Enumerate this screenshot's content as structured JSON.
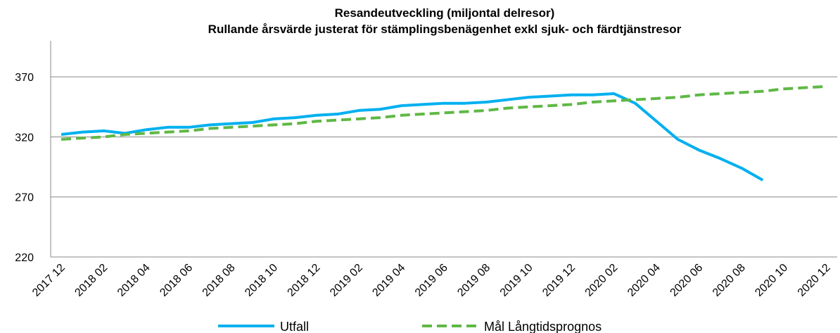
{
  "chart_data": {
    "type": "line",
    "title": "Resandeutveckling (miljontal delresor)",
    "subtitle": "Rullande årsvärde justerat för stämplingsbenägenhet exkl sjuk- och färdtjänstresor",
    "categories": [
      "2017 12",
      null,
      "2018 02",
      null,
      "2018 04",
      null,
      "2018 06",
      null,
      "2018 08",
      null,
      "2018 10",
      null,
      "2018 12",
      null,
      "2019 02",
      null,
      "2019 04",
      null,
      "2019 06",
      null,
      "2019 08",
      null,
      "2019 10",
      null,
      "2019 12",
      null,
      "2020 02",
      null,
      "2020 04",
      null,
      "2020 06",
      null,
      "2020 08",
      null,
      "2020 10",
      null,
      "2020 12"
    ],
    "series": [
      {
        "name": "Utfall",
        "color": "#00b0f0",
        "dash": false,
        "values": [
          322,
          324,
          325,
          323,
          326,
          328,
          328,
          330,
          331,
          332,
          335,
          336,
          338,
          339,
          342,
          343,
          346,
          347,
          348,
          348,
          349,
          351,
          353,
          354,
          355,
          355,
          356,
          348,
          333,
          318,
          309,
          302,
          294,
          284,
          null,
          null,
          null
        ]
      },
      {
        "name": "Mål Långtidsprognos",
        "color": "#5fb845",
        "dash": true,
        "values": [
          318,
          319,
          320,
          322,
          323,
          324,
          325,
          327,
          328,
          329,
          330,
          331,
          333,
          334,
          335,
          336,
          338,
          339,
          340,
          341,
          342,
          344,
          345,
          346,
          347,
          349,
          350,
          351,
          352,
          353,
          355,
          356,
          357,
          358,
          360,
          361,
          362
        ]
      }
    ],
    "ylim": [
      220,
      400
    ],
    "yticks": [
      220,
      270,
      320,
      370
    ],
    "grid": true,
    "legend": "bottom"
  }
}
